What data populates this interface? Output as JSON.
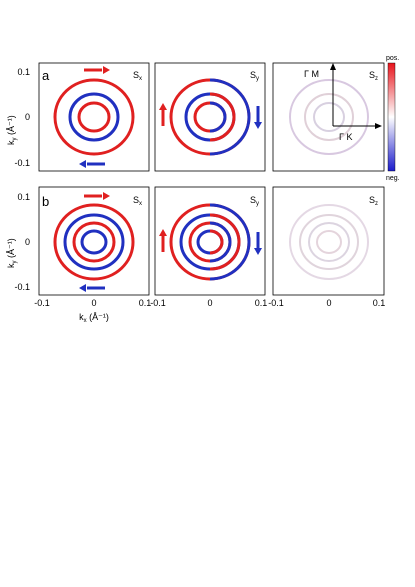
{
  "figure": {
    "rows": [
      {
        "label": "a",
        "panels": [
          {
            "component": "S",
            "subscript": "x"
          },
          {
            "component": "S",
            "subscript": "y"
          },
          {
            "component": "S",
            "subscript": "z"
          }
        ]
      },
      {
        "label": "b",
        "panels": [
          {
            "component": "S",
            "subscript": "x"
          },
          {
            "component": "S",
            "subscript": "y"
          },
          {
            "component": "S",
            "subscript": "z"
          }
        ]
      }
    ],
    "y_axis_label": "k",
    "y_axis_subscript": "y",
    "y_axis_unit": "(Å⁻¹)",
    "x_axis_label": "k",
    "x_axis_subscript": "x",
    "x_axis_unit": "(Å⁻¹)",
    "y_ticks": [
      "0.1",
      "0",
      "-0.1"
    ],
    "x_ticks": [
      "-0.1",
      "0",
      "0.1"
    ],
    "colorbar": {
      "top_label": "pos.",
      "bottom_label": "neg.",
      "pos_color": "#e8141c",
      "neg_color": "#1c1ccc"
    },
    "direction_inset": {
      "vertical_label": "Γ M",
      "horizontal_label": "Γ K"
    },
    "colors": {
      "red": "#e8141c",
      "blue": "#1c1ccc"
    }
  }
}
